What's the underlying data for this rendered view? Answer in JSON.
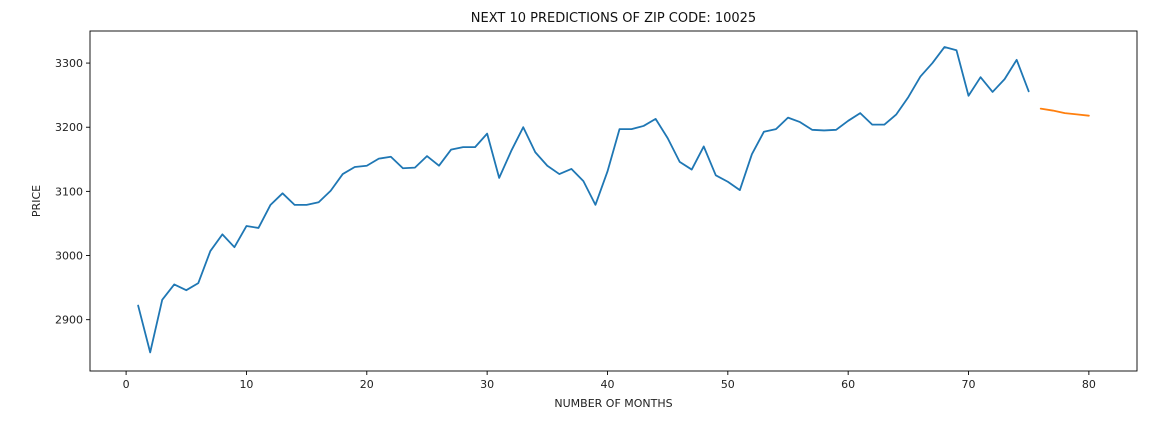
{
  "chart_data": {
    "type": "line",
    "title": "NEXT 10 PREDICTIONS OF ZIP CODE: 10025",
    "xlabel": "NUMBER OF MONTHS",
    "ylabel": "PRICE",
    "xlim": [
      -3.0,
      84.0
    ],
    "ylim": [
      2820,
      3350
    ],
    "x_ticks": [
      0,
      10,
      20,
      30,
      40,
      50,
      60,
      70,
      80
    ],
    "y_ticks": [
      2900,
      3000,
      3100,
      3200,
      3300
    ],
    "grid": false,
    "legend": "none",
    "series": [
      {
        "color": "#1f77b4",
        "x": [
          1,
          2,
          3,
          4,
          5,
          6,
          7,
          8,
          9,
          10,
          11,
          12,
          13,
          14,
          15,
          16,
          17,
          18,
          19,
          20,
          21,
          22,
          23,
          24,
          25,
          26,
          27,
          28,
          29,
          30,
          31,
          32,
          33,
          34,
          35,
          36,
          37,
          38,
          39,
          40,
          41,
          42,
          43,
          44,
          45,
          46,
          47,
          48,
          49,
          50,
          51,
          52,
          53,
          54,
          55,
          56,
          57,
          58,
          59,
          60,
          61,
          62,
          63,
          64,
          65,
          66,
          67,
          68,
          69,
          70,
          71,
          72,
          73,
          74,
          75
        ],
        "y": [
          2922,
          2849,
          2931,
          2955,
          2946,
          2957,
          3007,
          3033,
          3013,
          3046,
          3043,
          3079,
          3097,
          3079,
          3079,
          3083,
          3101,
          3127,
          3138,
          3140,
          3151,
          3154,
          3136,
          3137,
          3155,
          3140,
          3165,
          3169,
          3169,
          3190,
          3121,
          3163,
          3200,
          3161,
          3140,
          3127,
          3135,
          3116,
          3079,
          3131,
          3197,
          3197,
          3202,
          3213,
          3183,
          3146,
          3134,
          3170,
          3125,
          3115,
          3102,
          3158,
          3193,
          3197,
          3215,
          3208,
          3196,
          3195,
          3196,
          3210,
          3222,
          3204,
          3204,
          3220,
          3247,
          3279,
          3300,
          3325,
          3320,
          3249,
          3278,
          3255,
          3275,
          3305,
          3256
        ]
      },
      {
        "color": "#ff7f0e",
        "x": [
          76,
          77,
          78,
          79,
          80
        ],
        "y": [
          3229,
          3226,
          3222,
          3220,
          3218
        ]
      }
    ]
  }
}
